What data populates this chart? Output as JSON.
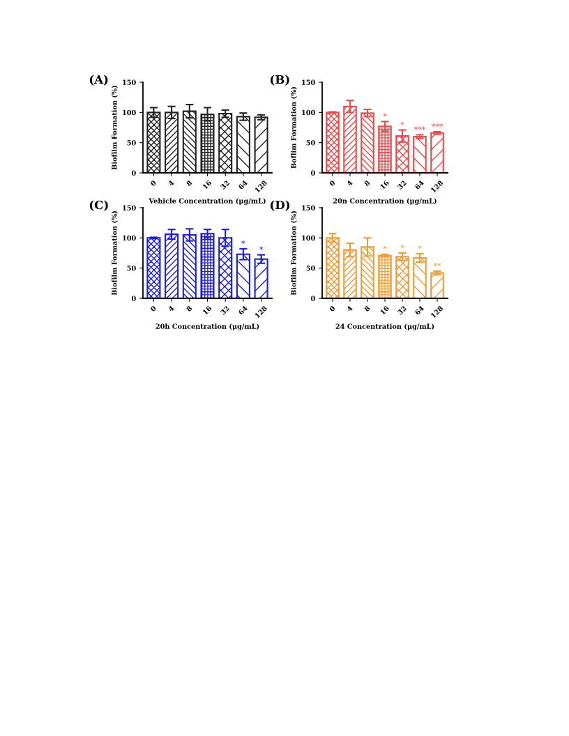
{
  "chart_data": [
    {
      "type": "bar",
      "title": "(A)",
      "xlabel": "Vehicle Concentration (μg/mL)",
      "ylabel": "Biofilm Formation (%)",
      "categories": [
        "0",
        "4",
        "8",
        "16",
        "32",
        "64",
        "128"
      ],
      "values": [
        100,
        100,
        102,
        97,
        98,
        93,
        92
      ],
      "errors": [
        8,
        10,
        11,
        11,
        6,
        6,
        4
      ],
      "color": "#222222",
      "ylim": [
        0,
        150
      ],
      "yticks": [
        0,
        50,
        100,
        150
      ],
      "grid": false,
      "legend": false
    },
    {
      "type": "bar",
      "title": "(B)",
      "xlabel": "20n Concentration (μg/mL)",
      "ylabel": "Boflim Formation (%)",
      "categories": [
        "0",
        "4",
        "8",
        "16",
        "32",
        "64",
        "128"
      ],
      "values": [
        100,
        110,
        99,
        77,
        61,
        60,
        66
      ],
      "errors": [
        1,
        10,
        6,
        8,
        10,
        3,
        2
      ],
      "color": "#f04848",
      "ylim": [
        0,
        150
      ],
      "yticks": [
        0,
        50,
        100,
        150
      ],
      "grid": false,
      "legend": false,
      "annotations": [
        {
          "text": "*",
          "x": "16",
          "y": 85
        },
        {
          "text": "*",
          "x": "32",
          "y": 71
        },
        {
          "text": "***",
          "x": "64",
          "y": 63
        },
        {
          "text": "***",
          "x": "128",
          "y": 68
        }
      ]
    },
    {
      "type": "bar",
      "title": "(C)",
      "xlabel": "20h Concentration (μg/mL)",
      "ylabel": "Biofilm Formation (%)",
      "categories": [
        "0",
        "4",
        "8",
        "16",
        "32",
        "64",
        "128"
      ],
      "values": [
        100,
        106,
        105,
        107,
        100,
        73,
        65
      ],
      "errors": [
        1,
        8,
        10,
        7,
        14,
        9,
        7
      ],
      "color": "#1a1aee",
      "ylim": [
        0,
        150
      ],
      "yticks": [
        0,
        50,
        100,
        150
      ],
      "grid": false,
      "legend": false,
      "annotations": [
        {
          "text": "*",
          "x": "64",
          "y": 82
        },
        {
          "text": "*",
          "x": "128",
          "y": 72
        }
      ]
    },
    {
      "type": "bar",
      "title": "(D)",
      "xlabel": "24 Concentration (μg/mL)",
      "ylabel": "Biofilm Formation (%)",
      "categories": [
        "0",
        "4",
        "8",
        "16",
        "32",
        "64",
        "128"
      ],
      "values": [
        100,
        80,
        85,
        71,
        69,
        67,
        42
      ],
      "errors": [
        7,
        11,
        15,
        2,
        6,
        7,
        3
      ],
      "color": "#f39a35",
      "ylim": [
        0,
        150
      ],
      "yticks": [
        0,
        50,
        100,
        150
      ],
      "grid": false,
      "legend": false,
      "annotations": [
        {
          "text": "*",
          "x": "16",
          "y": 73
        },
        {
          "text": "*",
          "x": "32",
          "y": 75
        },
        {
          "text": "*",
          "x": "64",
          "y": 74
        },
        {
          "text": "**",
          "x": "128",
          "y": 45
        }
      ]
    }
  ]
}
